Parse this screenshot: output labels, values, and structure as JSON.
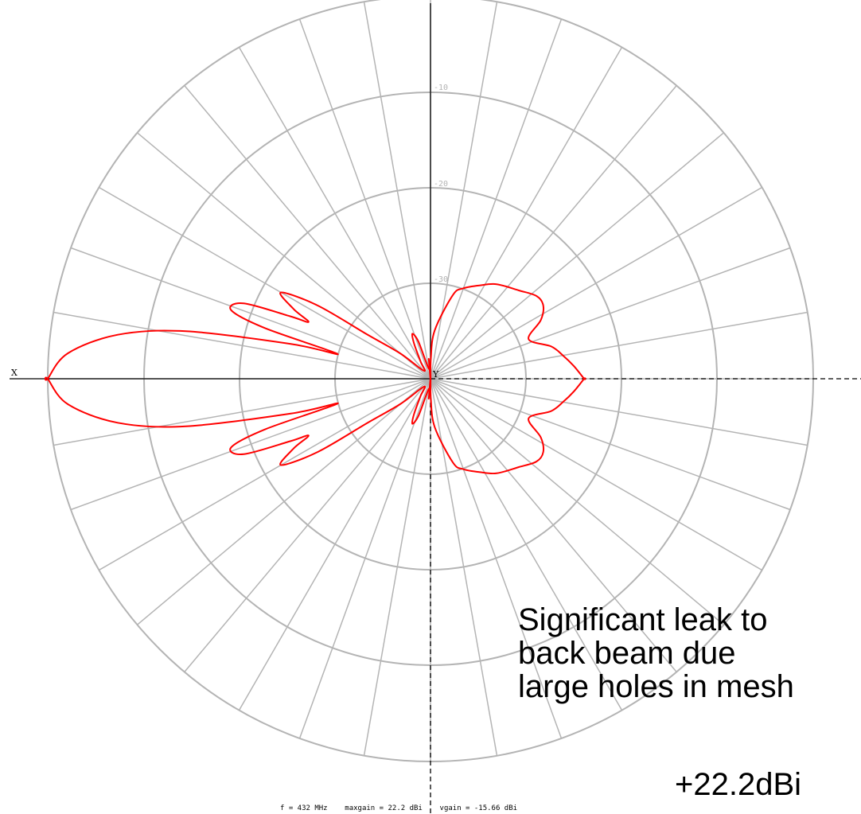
{
  "chart_data": {
    "type": "polar",
    "grid": true,
    "radial_scale": "dB below max gain",
    "ring_labels": [
      "-10",
      "-20",
      "-30"
    ],
    "axis_labels": {
      "x": "X",
      "y": "Y"
    },
    "spoke_step_deg": 10,
    "series": [
      {
        "color": "#ff0000",
        "relative_gain_db_by_azimuth_deg": [
          [
            180,
            0
          ],
          [
            176,
            -2
          ],
          [
            172,
            -7
          ],
          [
            169,
            -14
          ],
          [
            166,
            -25
          ],
          [
            165,
            -30
          ],
          [
            163,
            -22
          ],
          [
            161,
            -18
          ],
          [
            158,
            -19
          ],
          [
            156,
            -24
          ],
          [
            155,
            -26
          ],
          [
            153,
            -24
          ],
          [
            150,
            -22
          ],
          [
            147,
            -26
          ],
          [
            145,
            -32
          ],
          [
            140,
            -36
          ],
          [
            130,
            -39
          ],
          [
            120,
            -38
          ],
          [
            115,
            -36
          ],
          [
            112,
            -35
          ],
          [
            108,
            -36
          ],
          [
            100,
            -39
          ],
          [
            95,
            -38
          ],
          [
            91,
            -42
          ],
          [
            89,
            -38
          ],
          [
            85,
            -35
          ],
          [
            75,
            -31
          ],
          [
            70,
            -30
          ],
          [
            62,
            -29
          ],
          [
            55,
            -28
          ],
          [
            45,
            -27
          ],
          [
            38,
            -26
          ],
          [
            33,
            -26
          ],
          [
            28,
            -27
          ],
          [
            22,
            -29
          ],
          [
            15,
            -27
          ],
          [
            10,
            -26
          ],
          [
            5,
            -25
          ],
          [
            0,
            -24
          ]
        ]
      }
    ]
  },
  "footer": {
    "frequency": "f = 432 MHz",
    "maxgain": "maxgain = 22.2 dBi",
    "vgain": "vgain = -15.66 dBi"
  },
  "annotation": {
    "lines": [
      "Significant leak to",
      "back beam due",
      "large holes in mesh"
    ],
    "gain": "+22.2dBi"
  }
}
